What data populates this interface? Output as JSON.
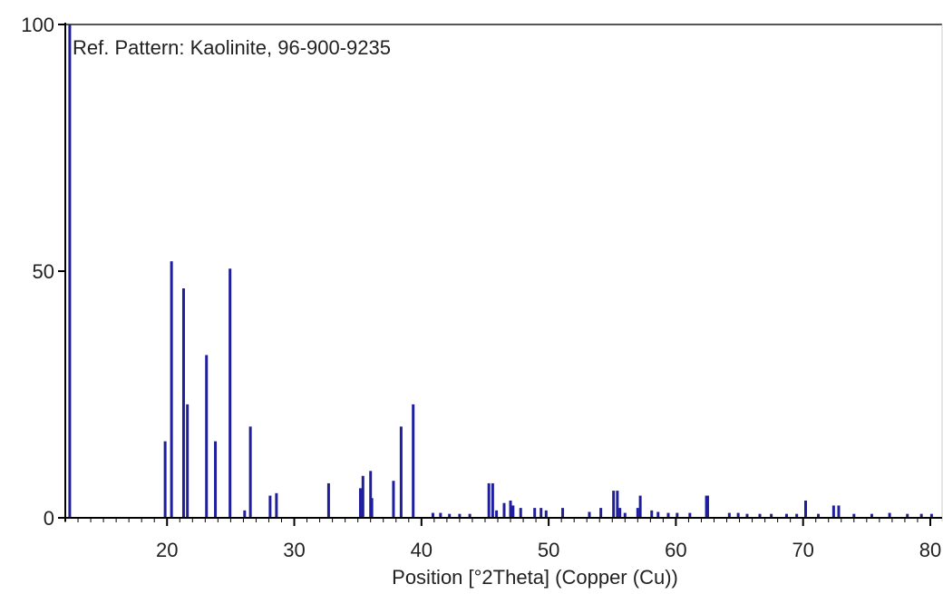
{
  "chart_data": {
    "type": "bar",
    "subtype": "stick-pattern",
    "annotation": "Ref. Pattern: Kaolinite, 96-900-9235",
    "xlabel": "Position [°2Theta] (Copper (Cu))",
    "ylabel": "",
    "xlim": [
      12,
      80.5
    ],
    "ylim": [
      0,
      100
    ],
    "x_ticks": [
      20,
      30,
      40,
      50,
      60,
      70,
      80
    ],
    "y_ticks": [
      0,
      50,
      100
    ],
    "grid": false,
    "legend": "none",
    "colors": {
      "sticks": "#1f1f9e",
      "axis": "#000000",
      "frame": "#555555"
    },
    "peaks": [
      [
        12.35,
        100
      ],
      [
        19.85,
        15.5
      ],
      [
        20.35,
        52
      ],
      [
        21.3,
        46.5
      ],
      [
        21.6,
        23
      ],
      [
        23.1,
        33
      ],
      [
        23.8,
        15.5
      ],
      [
        24.95,
        50.5
      ],
      [
        26.1,
        1.5
      ],
      [
        26.55,
        18.5
      ],
      [
        28.1,
        4.5
      ],
      [
        28.6,
        5
      ],
      [
        32.7,
        7
      ],
      [
        35.2,
        6
      ],
      [
        35.4,
        8.5
      ],
      [
        36.0,
        9.5
      ],
      [
        36.1,
        4
      ],
      [
        37.8,
        7.5
      ],
      [
        38.4,
        18.5
      ],
      [
        39.35,
        23
      ],
      [
        40.9,
        1
      ],
      [
        41.5,
        1
      ],
      [
        42.2,
        0.8
      ],
      [
        43.0,
        0.8
      ],
      [
        43.8,
        0.8
      ],
      [
        45.3,
        7
      ],
      [
        45.6,
        7
      ],
      [
        45.9,
        1.5
      ],
      [
        46.5,
        3
      ],
      [
        47.0,
        3.5
      ],
      [
        47.2,
        2.5
      ],
      [
        47.8,
        2
      ],
      [
        48.9,
        2
      ],
      [
        49.4,
        2
      ],
      [
        49.8,
        1.5
      ],
      [
        51.1,
        2
      ],
      [
        53.2,
        1.2
      ],
      [
        54.1,
        2
      ],
      [
        55.1,
        5.5
      ],
      [
        55.4,
        5.5
      ],
      [
        55.6,
        2
      ],
      [
        56.0,
        1
      ],
      [
        57.0,
        2
      ],
      [
        57.2,
        4.5
      ],
      [
        58.1,
        1.5
      ],
      [
        58.6,
        1.2
      ],
      [
        59.4,
        1
      ],
      [
        60.1,
        1
      ],
      [
        61.1,
        1
      ],
      [
        62.4,
        4.5
      ],
      [
        62.5,
        4.5
      ],
      [
        64.2,
        1
      ],
      [
        64.9,
        1
      ],
      [
        65.6,
        0.8
      ],
      [
        66.6,
        0.8
      ],
      [
        67.5,
        0.8
      ],
      [
        68.7,
        0.8
      ],
      [
        69.5,
        0.8
      ],
      [
        70.2,
        3.5
      ],
      [
        71.2,
        0.8
      ],
      [
        72.4,
        2.5
      ],
      [
        72.8,
        2.5
      ],
      [
        74.0,
        0.8
      ],
      [
        75.4,
        0.8
      ],
      [
        76.8,
        1
      ],
      [
        78.2,
        0.8
      ],
      [
        79.3,
        0.8
      ],
      [
        80.1,
        0.8
      ]
    ]
  }
}
